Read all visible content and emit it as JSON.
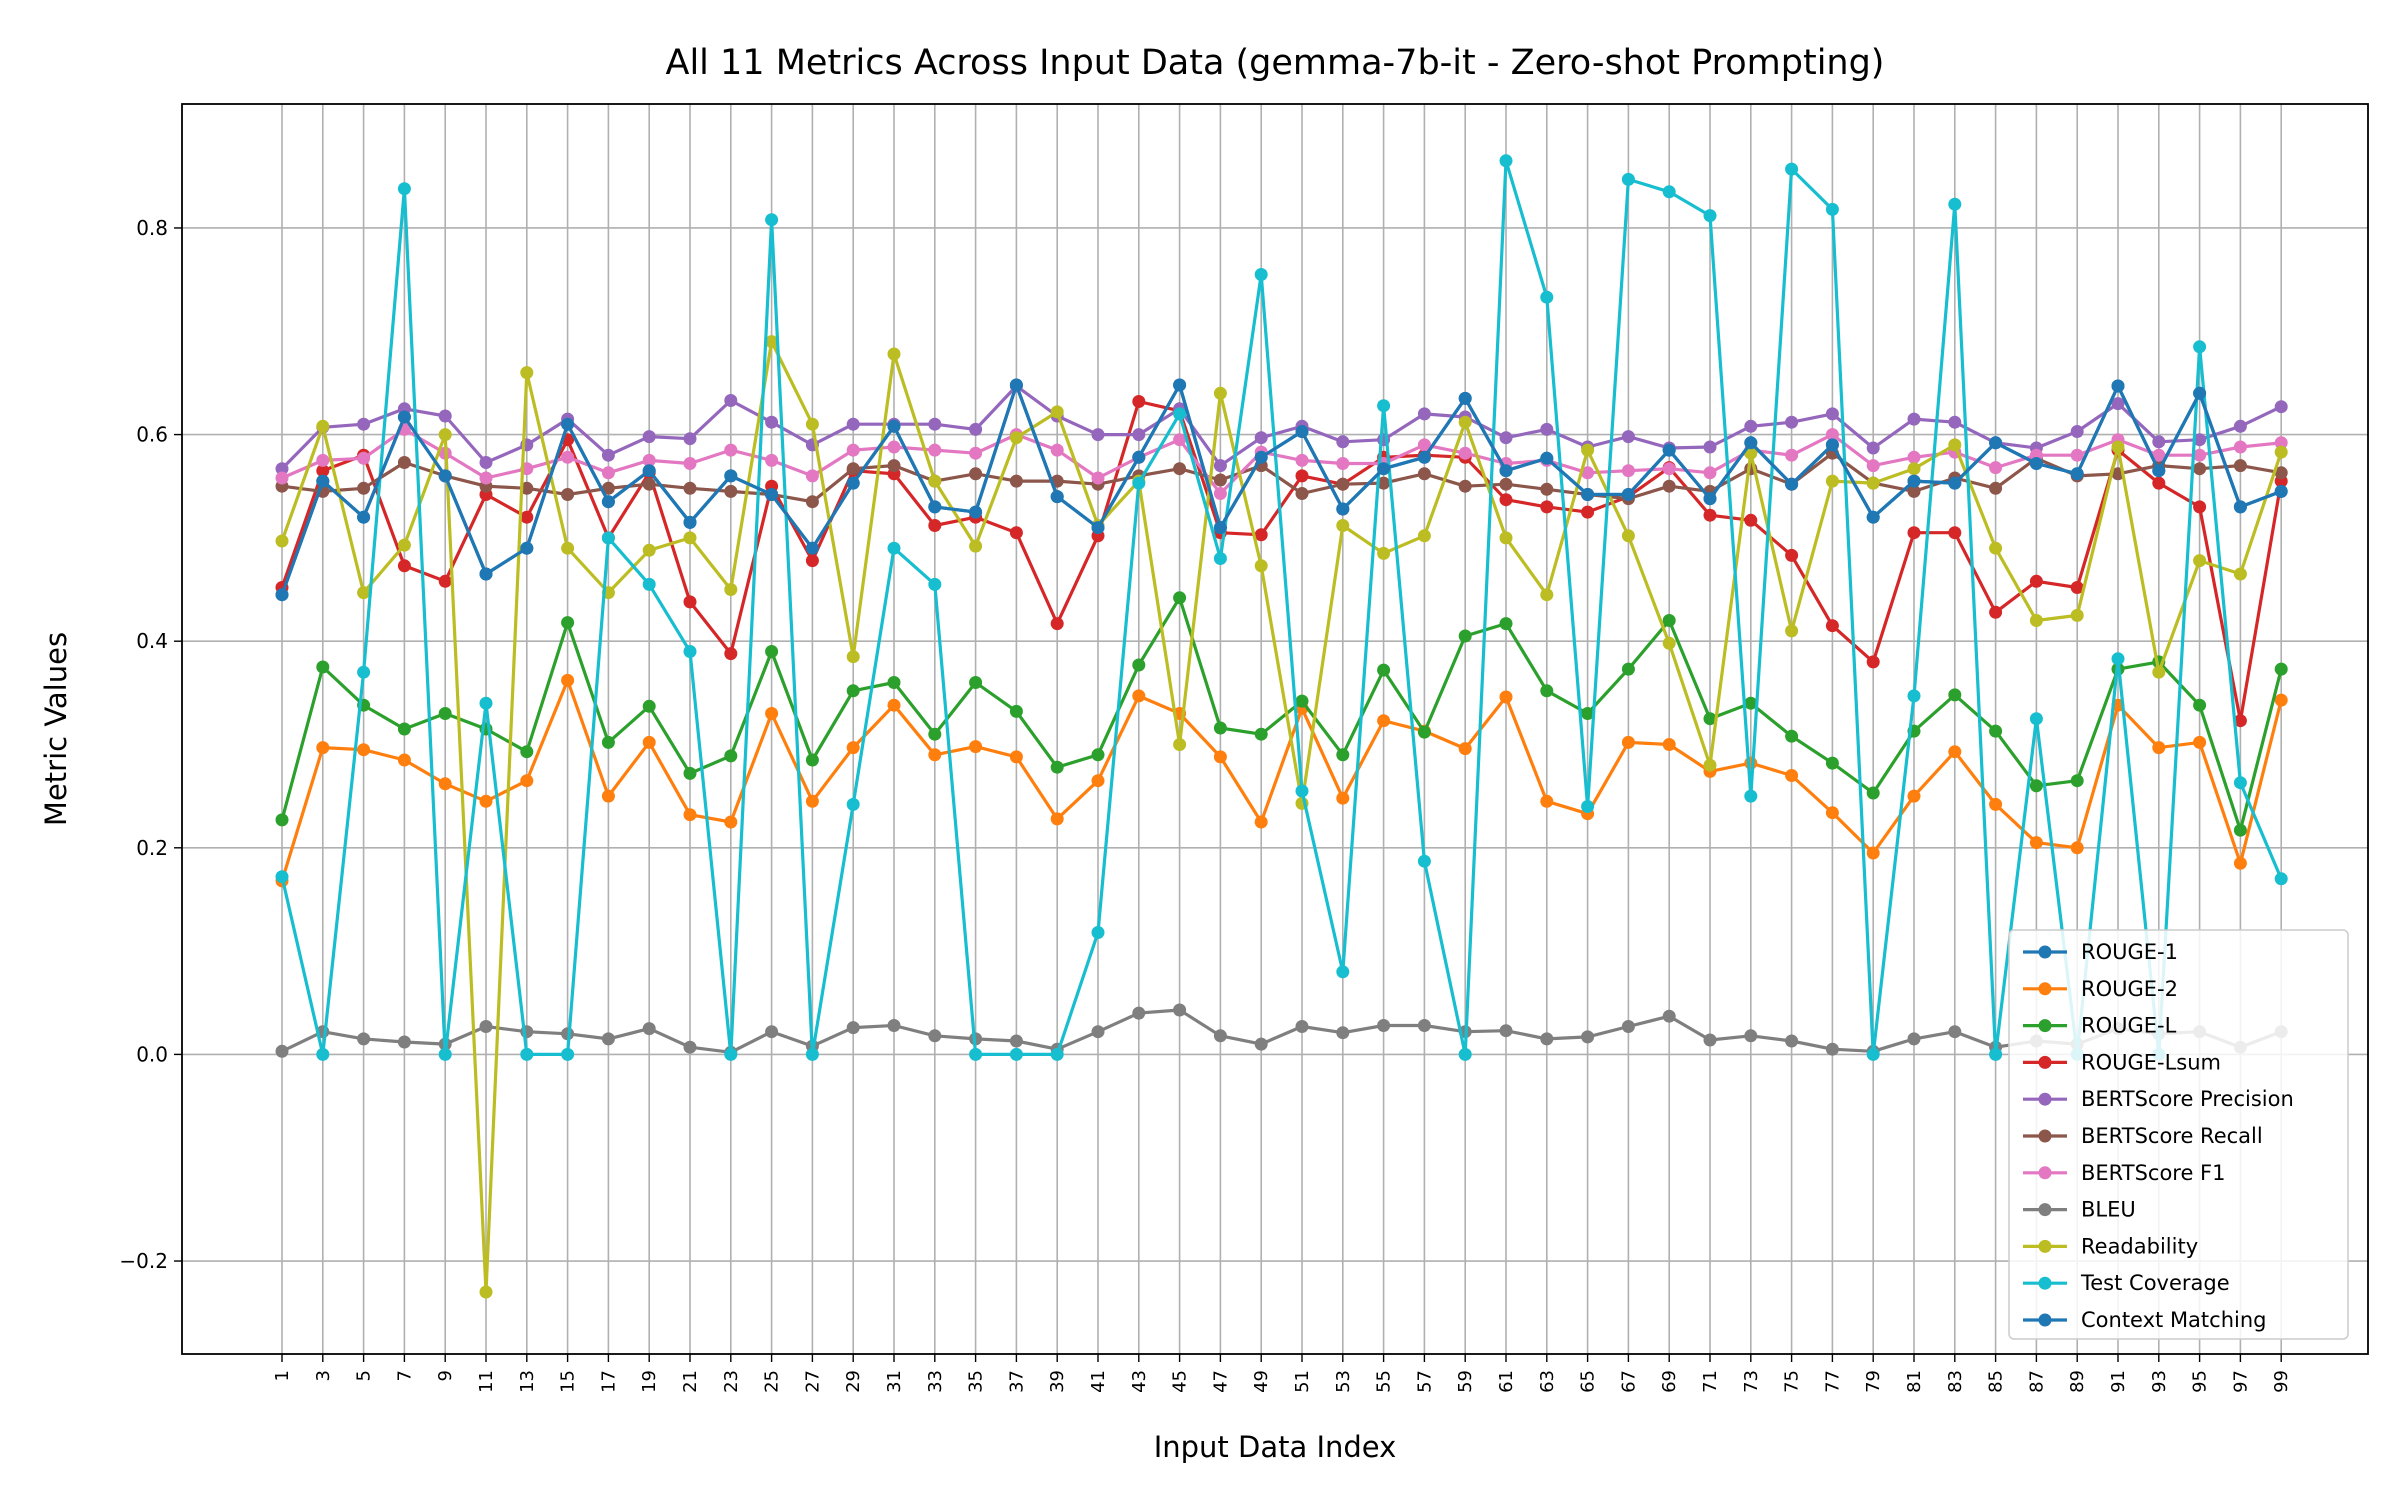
{
  "chart_data": {
    "type": "line",
    "title": "All 11 Metrics Across Input Data (gemma-7b-it - Zero-shot Prompting)",
    "xlabel": "Input Data Index",
    "ylabel": "Metric Values",
    "ylim": [
      -0.29,
      0.92
    ],
    "yticks": [
      -0.2,
      0.0,
      0.2,
      0.4,
      0.6,
      0.8
    ],
    "ytick_labels": [
      "−0.2",
      "0.0",
      "0.2",
      "0.4",
      "0.6",
      "0.8"
    ],
    "grid": true,
    "legend_position": "lower-right",
    "x": [
      1,
      3,
      5,
      7,
      9,
      11,
      13,
      15,
      17,
      19,
      21,
      23,
      25,
      27,
      29,
      31,
      33,
      35,
      37,
      39,
      41,
      43,
      45,
      47,
      49,
      51,
      53,
      55,
      57,
      59,
      61,
      63,
      65,
      67,
      69,
      71,
      73,
      75,
      77,
      79,
      81,
      83,
      85,
      87,
      89,
      91,
      93,
      95,
      97,
      99
    ],
    "xtick_labels": [
      "1",
      "3",
      "5",
      "7",
      "9",
      "11",
      "13",
      "15",
      "17",
      "19",
      "21",
      "23",
      "25",
      "27",
      "29",
      "31",
      "33",
      "35",
      "37",
      "39",
      "41",
      "43",
      "45",
      "47",
      "49",
      "51",
      "53",
      "55",
      "57",
      "59",
      "61",
      "63",
      "65",
      "67",
      "69",
      "71",
      "73",
      "75",
      "77",
      "79",
      "81",
      "83",
      "85",
      "87",
      "89",
      "91",
      "93",
      "95",
      "97",
      "99"
    ],
    "series": [
      {
        "name": "ROUGE-1",
        "color": "#1f77b4",
        "values": [
          0.445,
          0.555,
          0.52,
          0.617,
          0.56,
          0.465,
          0.49,
          0.61,
          0.535,
          0.565,
          0.515,
          0.56,
          0.542,
          0.49,
          0.553,
          0.608,
          0.53,
          0.525,
          0.648,
          0.54,
          0.51,
          0.578,
          0.648,
          0.51,
          0.578,
          0.603,
          0.528,
          0.567,
          0.578,
          0.635,
          0.565,
          0.577,
          0.542,
          0.542,
          0.585,
          0.538,
          0.592,
          0.552,
          0.59,
          0.52,
          0.555,
          0.553,
          0.592,
          0.572,
          0.562,
          0.647,
          0.565,
          0.64,
          0.53,
          0.545
        ]
      },
      {
        "name": "ROUGE-2",
        "color": "#ff7f0e",
        "values": [
          0.168,
          0.297,
          0.295,
          0.285,
          0.262,
          0.245,
          0.265,
          0.362,
          0.25,
          0.302,
          0.232,
          0.225,
          0.33,
          0.245,
          0.297,
          0.338,
          0.29,
          0.298,
          0.288,
          0.228,
          0.265,
          0.347,
          0.33,
          0.288,
          0.225,
          0.335,
          0.248,
          0.323,
          0.313,
          0.296,
          0.346,
          0.245,
          0.233,
          0.302,
          0.3,
          0.274,
          0.282,
          0.27,
          0.234,
          0.195,
          0.25,
          0.293,
          0.242,
          0.205,
          0.2,
          0.338,
          0.297,
          0.302,
          0.185,
          0.343
        ]
      },
      {
        "name": "ROUGE-L",
        "color": "#2ca02c",
        "values": [
          0.227,
          0.375,
          0.338,
          0.315,
          0.33,
          0.315,
          0.293,
          0.418,
          0.302,
          0.337,
          0.272,
          0.289,
          0.39,
          0.285,
          0.352,
          0.36,
          0.31,
          0.36,
          0.332,
          0.278,
          0.29,
          0.377,
          0.442,
          0.316,
          0.31,
          0.342,
          0.29,
          0.372,
          0.312,
          0.405,
          0.417,
          0.352,
          0.33,
          0.373,
          0.42,
          0.325,
          0.34,
          0.308,
          0.282,
          0.253,
          0.313,
          0.348,
          0.313,
          0.26,
          0.265,
          0.373,
          0.38,
          0.338,
          0.217,
          0.373
        ]
      },
      {
        "name": "ROUGE-Lsum",
        "color": "#d62728",
        "values": [
          0.452,
          0.565,
          0.58,
          0.473,
          0.458,
          0.542,
          0.52,
          0.595,
          0.5,
          0.563,
          0.438,
          0.388,
          0.55,
          0.478,
          0.565,
          0.562,
          0.512,
          0.52,
          0.505,
          0.417,
          0.502,
          0.632,
          0.623,
          0.505,
          0.503,
          0.56,
          0.552,
          0.578,
          0.58,
          0.578,
          0.537,
          0.53,
          0.525,
          0.54,
          0.568,
          0.522,
          0.517,
          0.483,
          0.415,
          0.38,
          0.505,
          0.505,
          0.428,
          0.458,
          0.452,
          0.585,
          0.553,
          0.53,
          0.323,
          0.555
        ]
      },
      {
        "name": "BERTScore Precision",
        "color": "#9467bd",
        "values": [
          0.567,
          0.607,
          0.61,
          0.625,
          0.618,
          0.573,
          0.59,
          0.615,
          0.58,
          0.598,
          0.596,
          0.633,
          0.612,
          0.59,
          0.61,
          0.61,
          0.61,
          0.605,
          0.647,
          0.618,
          0.6,
          0.6,
          0.625,
          0.57,
          0.597,
          0.608,
          0.593,
          0.595,
          0.62,
          0.617,
          0.597,
          0.605,
          0.588,
          0.598,
          0.587,
          0.588,
          0.608,
          0.612,
          0.62,
          0.587,
          0.615,
          0.612,
          0.592,
          0.587,
          0.603,
          0.63,
          0.593,
          0.595,
          0.608,
          0.627
        ]
      },
      {
        "name": "BERTScore Recall",
        "color": "#8c564b",
        "values": [
          0.55,
          0.545,
          0.548,
          0.573,
          0.56,
          0.55,
          0.548,
          0.542,
          0.548,
          0.552,
          0.548,
          0.545,
          0.542,
          0.535,
          0.567,
          0.57,
          0.555,
          0.562,
          0.555,
          0.555,
          0.552,
          0.56,
          0.567,
          0.556,
          0.57,
          0.543,
          0.552,
          0.553,
          0.562,
          0.55,
          0.552,
          0.547,
          0.542,
          0.538,
          0.55,
          0.545,
          0.567,
          0.552,
          0.582,
          0.553,
          0.545,
          0.558,
          0.548,
          0.577,
          0.56,
          0.562,
          0.57,
          0.567,
          0.57,
          0.563
        ]
      },
      {
        "name": "BERTScore F1",
        "color": "#e377c2",
        "values": [
          0.558,
          0.575,
          0.577,
          0.605,
          0.582,
          0.558,
          0.567,
          0.578,
          0.563,
          0.575,
          0.572,
          0.585,
          0.575,
          0.56,
          0.585,
          0.588,
          0.585,
          0.582,
          0.6,
          0.585,
          0.558,
          0.578,
          0.595,
          0.543,
          0.583,
          0.575,
          0.572,
          0.572,
          0.59,
          0.582,
          0.572,
          0.575,
          0.563,
          0.565,
          0.567,
          0.563,
          0.585,
          0.58,
          0.6,
          0.57,
          0.578,
          0.583,
          0.568,
          0.58,
          0.58,
          0.595,
          0.58,
          0.58,
          0.588,
          0.592
        ]
      },
      {
        "name": "BLEU",
        "color": "#7f7f7f",
        "values": [
          0.003,
          0.022,
          0.015,
          0.012,
          0.01,
          0.027,
          0.022,
          0.02,
          0.015,
          0.025,
          0.007,
          0.002,
          0.022,
          0.008,
          0.026,
          0.028,
          0.018,
          0.015,
          0.013,
          0.005,
          0.022,
          0.04,
          0.043,
          0.018,
          0.01,
          0.027,
          0.021,
          0.028,
          0.028,
          0.022,
          0.023,
          0.015,
          0.017,
          0.027,
          0.037,
          0.014,
          0.018,
          0.013,
          0.005,
          0.003,
          0.015,
          0.022,
          0.007,
          0.013,
          0.01,
          0.025,
          0.02,
          0.022,
          0.007,
          0.022
        ]
      },
      {
        "name": "Readability",
        "color": "#bcbd22",
        "values": [
          0.497,
          0.608,
          0.447,
          0.493,
          0.6,
          -0.23,
          0.66,
          0.49,
          0.447,
          0.488,
          0.5,
          0.45,
          0.69,
          0.61,
          0.385,
          0.678,
          0.555,
          0.492,
          0.597,
          0.622,
          0.512,
          0.555,
          0.3,
          0.64,
          0.473,
          0.243,
          0.512,
          0.485,
          0.502,
          0.612,
          0.5,
          0.445,
          0.585,
          0.502,
          0.398,
          0.28,
          0.582,
          0.41,
          0.555,
          0.553,
          0.567,
          0.59,
          0.49,
          0.42,
          0.425,
          0.588,
          0.37,
          0.478,
          0.465,
          0.583
        ]
      },
      {
        "name": "Test Coverage",
        "color": "#17becf",
        "values": [
          0.172,
          0.0,
          0.37,
          0.838,
          0.0,
          0.34,
          0.0,
          0.0,
          0.5,
          0.455,
          0.39,
          0.0,
          0.808,
          0.0,
          0.242,
          0.49,
          0.455,
          0.0,
          0.0,
          0.0,
          0.118,
          0.553,
          0.62,
          0.48,
          0.755,
          0.255,
          0.08,
          0.628,
          0.187,
          0.0,
          0.865,
          0.733,
          0.24,
          0.847,
          0.835,
          0.812,
          0.25,
          0.857,
          0.818,
          0.0,
          0.347,
          0.823,
          0.0,
          0.325,
          0.0,
          0.383,
          0.0,
          0.685,
          0.263,
          0.17
        ]
      },
      {
        "name": "Context Matching",
        "color": "#1f77b4",
        "values": [
          0.445,
          0.555,
          0.52,
          0.617,
          0.56,
          0.465,
          0.49,
          0.61,
          0.535,
          0.565,
          0.515,
          0.56,
          0.542,
          0.49,
          0.553,
          0.608,
          0.53,
          0.525,
          0.648,
          0.54,
          0.51,
          0.578,
          0.648,
          0.51,
          0.578,
          0.603,
          0.528,
          0.567,
          0.578,
          0.635,
          0.565,
          0.577,
          0.542,
          0.542,
          0.585,
          0.538,
          0.592,
          0.552,
          0.59,
          0.52,
          0.555,
          0.553,
          0.592,
          0.572,
          0.562,
          0.647,
          0.565,
          0.64,
          0.53,
          0.545
        ]
      }
    ]
  }
}
